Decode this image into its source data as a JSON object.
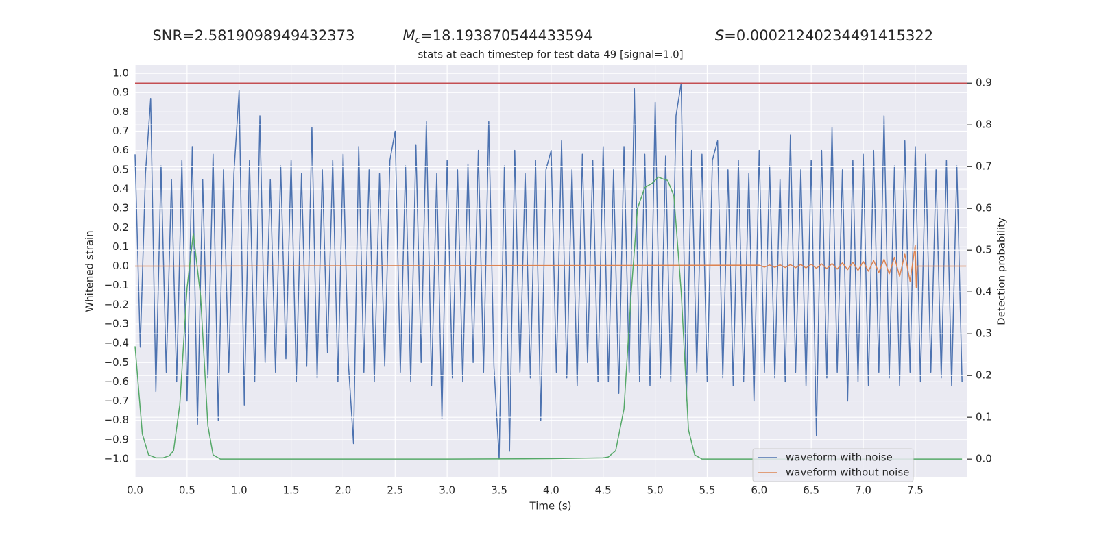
{
  "chart_data": {
    "type": "line",
    "header": {
      "snr_label": "SNR=2.5819098949432373",
      "mc_label": {
        "symbol": "M",
        "sub": "c",
        "text": "=18.193870544433594"
      },
      "s_label": {
        "symbol": "S",
        "text": "=0.00021240234491415322"
      }
    },
    "title": "stats at each timestep for test data 49 [signal=1.0]",
    "x_label": "Time (s)",
    "y_label": "Whitened strain",
    "y2_label": "Detection probability",
    "grid": true,
    "legend": "lower right",
    "xlim": [
      0,
      7.995
    ],
    "ylim": [
      -1.096,
      1.043
    ],
    "y2lim": [
      -0.044,
      0.943
    ],
    "xticks": [
      {
        "value": 0,
        "label": "0.0"
      },
      0.5,
      {
        "value": 1,
        "label": "1.0"
      },
      1.5,
      {
        "value": 2,
        "label": "2.0"
      },
      2.5,
      {
        "value": 3,
        "label": "3.0"
      },
      3.5,
      {
        "value": 4,
        "label": "4.0"
      },
      4.5,
      {
        "value": 5,
        "label": "5.0"
      },
      5.5,
      {
        "value": 6,
        "label": "6.0"
      },
      6.5,
      {
        "value": 7,
        "label": "7.0"
      },
      7.5
    ],
    "yticks": [
      {
        "value": -1,
        "label": "−1.0"
      },
      {
        "value": -0.9,
        "label": "−0.9"
      },
      {
        "value": -0.8,
        "label": "−0.8"
      },
      {
        "value": -0.7,
        "label": "−0.7"
      },
      {
        "value": -0.6,
        "label": "−0.6"
      },
      {
        "value": -0.5,
        "label": "−0.5"
      },
      {
        "value": -0.4,
        "label": "−0.4"
      },
      {
        "value": -0.3,
        "label": "−0.3"
      },
      {
        "value": -0.2,
        "label": "−0.2"
      },
      {
        "value": -0.1,
        "label": "−0.1"
      },
      {
        "value": 0,
        "label": "0.0"
      },
      0.1,
      0.2,
      0.3,
      0.4,
      0.5,
      0.6,
      0.7,
      0.8,
      0.9,
      {
        "value": 1,
        "label": "1.0"
      }
    ],
    "y2ticks": [
      {
        "value": 0,
        "label": "0.0"
      },
      0.1,
      0.2,
      0.3,
      0.4,
      0.5,
      0.6,
      0.7,
      0.8,
      0.9
    ],
    "hlines": [
      {
        "value": 0.9,
        "axis": "y2",
        "color": "#c44e52"
      }
    ],
    "series": [
      {
        "name": "waveform with noise",
        "color": "#4c72b0",
        "x": [
          0,
          0.05,
          0.1,
          0.15,
          0.2,
          0.25,
          0.3,
          0.35,
          0.4,
          0.45,
          0.5,
          0.55,
          0.6,
          0.65,
          0.7,
          0.75,
          0.8,
          0.85,
          0.9,
          0.95,
          1,
          1.05,
          1.1,
          1.15,
          1.2,
          1.25,
          1.3,
          1.35,
          1.4,
          1.45,
          1.5,
          1.55,
          1.6,
          1.65,
          1.7,
          1.75,
          1.8,
          1.85,
          1.9,
          1.95,
          2,
          2.05,
          2.1,
          2.15,
          2.2,
          2.25,
          2.3,
          2.35,
          2.4,
          2.45,
          2.5,
          2.55,
          2.6,
          2.65,
          2.7,
          2.75,
          2.8,
          2.85,
          2.9,
          2.95,
          3,
          3.05,
          3.1,
          3.15,
          3.2,
          3.25,
          3.3,
          3.35,
          3.4,
          3.45,
          3.5,
          3.55,
          3.6,
          3.65,
          3.7,
          3.75,
          3.8,
          3.85,
          3.9,
          3.95,
          4,
          4.05,
          4.1,
          4.15,
          4.2,
          4.25,
          4.3,
          4.35,
          4.4,
          4.45,
          4.5,
          4.55,
          4.6,
          4.65,
          4.7,
          4.75,
          4.8,
          4.85,
          4.9,
          4.95,
          5,
          5.05,
          5.1,
          5.15,
          5.2,
          5.25,
          5.3,
          5.35,
          5.4,
          5.45,
          5.5,
          5.55,
          5.6,
          5.65,
          5.7,
          5.75,
          5.8,
          5.85,
          5.9,
          5.95,
          6,
          6.05,
          6.1,
          6.15,
          6.2,
          6.25,
          6.3,
          6.35,
          6.4,
          6.45,
          6.5,
          6.55,
          6.6,
          6.65,
          6.7,
          6.75,
          6.8,
          6.85,
          6.9,
          6.95,
          7,
          7.05,
          7.1,
          7.15,
          7.2,
          7.25,
          7.3,
          7.35,
          7.4,
          7.45,
          7.5,
          7.55,
          7.6,
          7.65,
          7.7,
          7.75,
          7.8,
          7.85,
          7.9,
          7.95
        ],
        "values": [
          0.58,
          -0.42,
          0.48,
          0.87,
          -0.65,
          0.52,
          -0.55,
          0.45,
          -0.6,
          0.55,
          -0.7,
          0.62,
          -0.82,
          0.45,
          -0.58,
          0.58,
          -0.8,
          0.5,
          -0.55,
          0.48,
          0.91,
          -0.72,
          0.55,
          -0.6,
          0.78,
          -0.5,
          0.45,
          -0.55,
          0.52,
          -0.48,
          0.55,
          -0.6,
          0.48,
          -0.52,
          0.72,
          -0.58,
          0.5,
          -0.45,
          0.55,
          -0.6,
          0.58,
          -0.5,
          -0.92,
          0.62,
          -0.55,
          0.5,
          -0.6,
          0.48,
          -0.52,
          0.55,
          0.7,
          -0.55,
          0.52,
          -0.6,
          0.63,
          -0.5,
          0.75,
          -0.62,
          0.48,
          -0.79,
          0.55,
          -0.58,
          0.5,
          -0.6,
          0.53,
          -0.5,
          0.6,
          -0.55,
          0.75,
          -0.52,
          -1,
          0.52,
          -0.96,
          0.6,
          -0.55,
          0.48,
          -0.58,
          0.55,
          -0.8,
          0.5,
          0.6,
          -0.55,
          0.65,
          -0.58,
          0.5,
          -0.62,
          0.58,
          -0.5,
          0.55,
          -0.6,
          0.62,
          -0.6,
          0.5,
          -0.66,
          0.62,
          -0.55,
          0.92,
          -0.6,
          0.58,
          -0.62,
          0.85,
          -0.58,
          0.57,
          -0.6,
          0.78,
          0.95,
          -0.7,
          0.6,
          -0.55,
          0.58,
          -0.6,
          0.55,
          0.65,
          -0.58,
          0.5,
          -0.62,
          0.55,
          -0.6,
          0.48,
          -0.7,
          0.6,
          -0.55,
          0.52,
          -0.58,
          0.45,
          -0.6,
          0.68,
          -0.55,
          0.5,
          -0.62,
          0.55,
          -0.88,
          0.6,
          -0.58,
          0.72,
          -0.55,
          0.5,
          -0.7,
          0.55,
          -0.6,
          0.58,
          -0.62,
          0.6,
          -0.55,
          0.78,
          -0.58,
          0.52,
          -0.62,
          0.65,
          -0.55,
          0.62,
          -0.6,
          0.58,
          -0.55,
          0.5,
          -0.58,
          0.55,
          -0.62,
          0.52,
          -0.6
        ]
      },
      {
        "name": "waveform without noise",
        "color": "#dd8452",
        "x": [
          0,
          6,
          6.05,
          6.1,
          6.15,
          6.2,
          6.25,
          6.3,
          6.35,
          6.4,
          6.45,
          6.5,
          6.55,
          6.6,
          6.65,
          6.7,
          6.75,
          6.8,
          6.85,
          6.9,
          6.95,
          7,
          7.05,
          7.1,
          7.15,
          7.2,
          7.25,
          7.3,
          7.35,
          7.4,
          7.45,
          7.5,
          7.51,
          7.52,
          7.99
        ],
        "values": [
          0,
          0.005,
          -0.005,
          0.006,
          -0.006,
          0.007,
          -0.007,
          0.008,
          -0.008,
          0.009,
          -0.009,
          0.01,
          -0.011,
          0.012,
          -0.013,
          0.014,
          -0.015,
          0.017,
          -0.018,
          0.02,
          -0.022,
          0.024,
          -0.026,
          0.029,
          -0.032,
          0.036,
          -0.04,
          0.046,
          -0.053,
          0.062,
          -0.078,
          0.11,
          -0.11,
          0,
          0
        ]
      },
      {
        "color": "#55a868",
        "axis": "y2",
        "x": [
          0,
          0.07,
          0.13,
          0.2,
          0.27,
          0.33,
          0.37,
          0.43,
          0.5,
          0.56,
          0.63,
          0.7,
          0.75,
          0.82,
          1,
          2,
          3,
          4,
          4.5,
          4.55,
          4.62,
          4.7,
          4.77,
          4.83,
          4.9,
          4.97,
          5.03,
          5.08,
          5.12,
          5.18,
          5.25,
          5.32,
          5.38,
          5.45,
          6,
          7,
          7.95
        ],
        "values": [
          0.27,
          0.06,
          0.01,
          0.003,
          0.003,
          0.008,
          0.02,
          0.13,
          0.41,
          0.54,
          0.39,
          0.08,
          0.01,
          0,
          0,
          0,
          0,
          0.001,
          0.003,
          0.005,
          0.02,
          0.12,
          0.4,
          0.6,
          0.65,
          0.66,
          0.675,
          0.67,
          0.667,
          0.63,
          0.4,
          0.07,
          0.01,
          0,
          0,
          0,
          0
        ]
      }
    ]
  }
}
